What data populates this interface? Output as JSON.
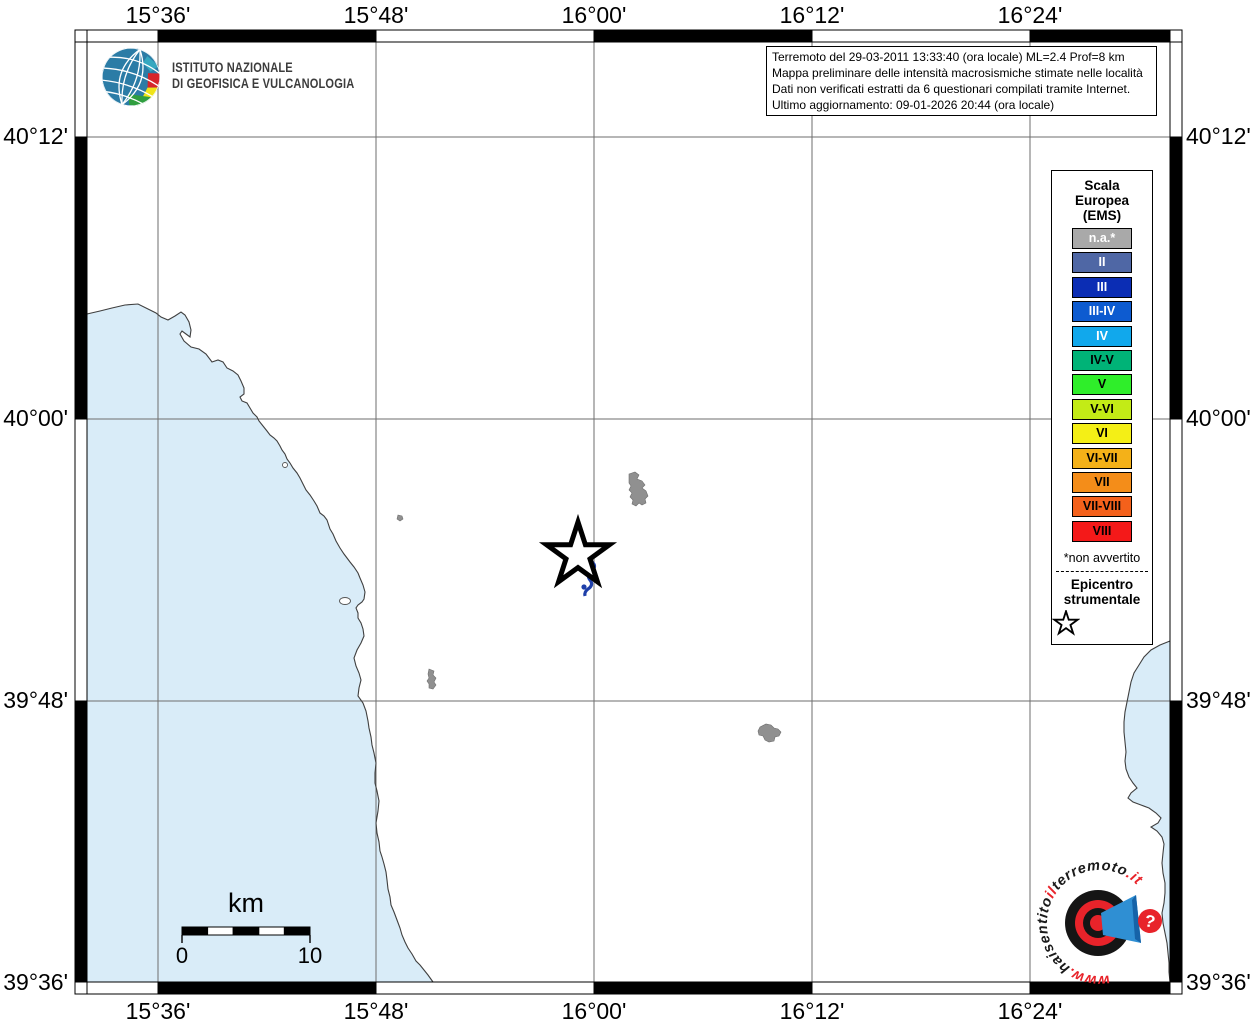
{
  "header": {
    "ingv_line1": "ISTITUTO NAZIONALE",
    "ingv_line2": "DI GEOFISICA E VULCANOLOGIA",
    "logo_icon": "ingv-globe-icon"
  },
  "info_box": {
    "lines": [
      "Terremoto del 29-03-2011 13:33:40 (ora locale) ML=2.4 Prof=8 km",
      "Mappa preliminare delle intensità macrosismiche stimate nelle località",
      "Dati non verificati estratti da 6 questionari compilati tramite Internet.",
      "Ultimo aggiornamento: 09-01-2026 20:44 (ora locale)"
    ]
  },
  "axes": {
    "top": [
      "15°36'",
      "15°48'",
      "16°00'",
      "16°12'",
      "16°24'"
    ],
    "bottom": [
      "15°36'",
      "15°48'",
      "16°00'",
      "16°12'",
      "16°24'"
    ],
    "left": [
      "40°12'",
      "40°00'",
      "39°48'",
      "39°36'"
    ],
    "right": [
      "40°12'",
      "40°00'",
      "39°48'",
      "39°36'"
    ]
  },
  "legend": {
    "title_lines": [
      "Scala",
      "Europea",
      "(EMS)"
    ],
    "items": [
      {
        "label": "n.a.*",
        "color": "#a9a9a9",
        "text_color": "#ffffff"
      },
      {
        "label": "II",
        "color": "#4f67a5",
        "text_color": "#ffffff"
      },
      {
        "label": "III",
        "color": "#0b2db4",
        "text_color": "#ffffff"
      },
      {
        "label": "III-IV",
        "color": "#0d5bd0",
        "text_color": "#ffffff"
      },
      {
        "label": "IV",
        "color": "#11a8ec",
        "text_color": "#ffffff"
      },
      {
        "label": "IV-V",
        "color": "#00b377",
        "text_color": "#000000"
      },
      {
        "label": "V",
        "color": "#2fee2a",
        "text_color": "#000000"
      },
      {
        "label": "V-VI",
        "color": "#c3eb16",
        "text_color": "#000000"
      },
      {
        "label": "VI",
        "color": "#f4ef16",
        "text_color": "#000000"
      },
      {
        "label": "VI-VII",
        "color": "#f4b118",
        "text_color": "#000000"
      },
      {
        "label": "VII",
        "color": "#f48d19",
        "text_color": "#000000"
      },
      {
        "label": "VII-VIII",
        "color": "#f4611b",
        "text_color": "#000000"
      },
      {
        "label": "VIII",
        "color": "#f41919",
        "text_color": "#000000"
      }
    ],
    "footnote": "*non avvertito",
    "epicenter_label_line1": "Epicentro",
    "epicenter_label_line2": "strumentale",
    "epicenter_icon": "star-outline-icon"
  },
  "scale_bar": {
    "unit": "km",
    "start_label": "0",
    "end_label": "10",
    "segments": 5
  },
  "map": {
    "epicenter_icon": "epicenter-star-icon"
  },
  "footer_logo": {
    "icon": "bullseye-megaphone-icon",
    "question_icon": "question-mark-icon",
    "question_mark": "?",
    "parts": [
      {
        "text": "www.",
        "color": "#e8232a"
      },
      {
        "text": "haisentito",
        "color": "#1a1a1a"
      },
      {
        "text": "il",
        "color": "#e8232a"
      },
      {
        "text": "terremoto",
        "color": "#1a1a1a"
      },
      {
        "text": ".it",
        "color": "#e8232a"
      }
    ]
  },
  "colors": {
    "sea": "#d9ecf8",
    "land": "#ffffff",
    "grid": "#6e6e6e",
    "coast": "#3f3f3f",
    "river": "#1e3fa9",
    "urban": "#909090",
    "logo_red": "#e8232a",
    "logo_blue": "#2f8fd3",
    "frame": "#000000"
  }
}
